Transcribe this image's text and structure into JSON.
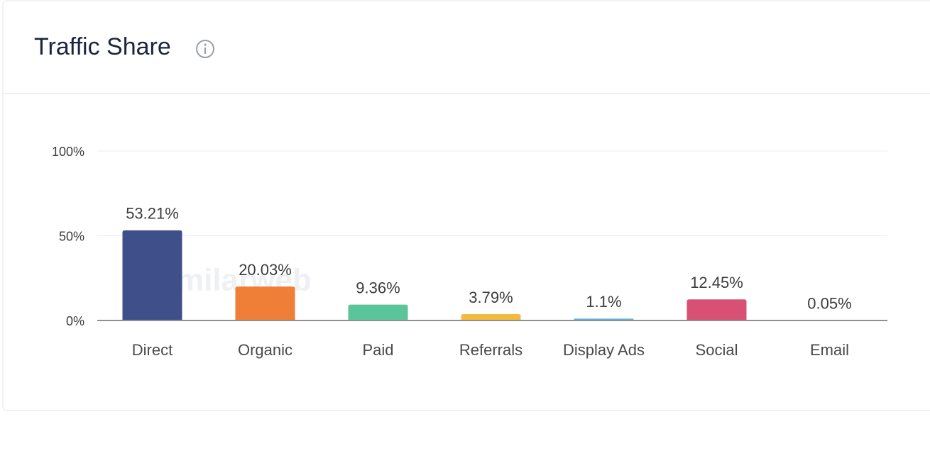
{
  "chart_data": {
    "type": "bar",
    "title": "Traffic Share",
    "watermark": "similarweb",
    "categories": [
      "Direct",
      "Organic",
      "Paid",
      "Referrals",
      "Display Ads",
      "Social",
      "Email"
    ],
    "values": [
      53.21,
      20.03,
      9.36,
      3.79,
      1.1,
      12.45,
      0.05
    ],
    "value_labels": [
      "53.21%",
      "20.03%",
      "9.36%",
      "3.79%",
      "1.1%",
      "12.45%",
      "0.05%"
    ],
    "colors": [
      "#3f4f8a",
      "#ef7f36",
      "#5bc59a",
      "#f2bb40",
      "#5fb4dc",
      "#d95075",
      "#8a3aa8"
    ],
    "ylim": [
      0,
      100
    ],
    "yticks": [
      {
        "value": 0,
        "label": "0%"
      },
      {
        "value": 50,
        "label": "50%"
      },
      {
        "value": 100,
        "label": "100%"
      }
    ],
    "grid": true
  }
}
